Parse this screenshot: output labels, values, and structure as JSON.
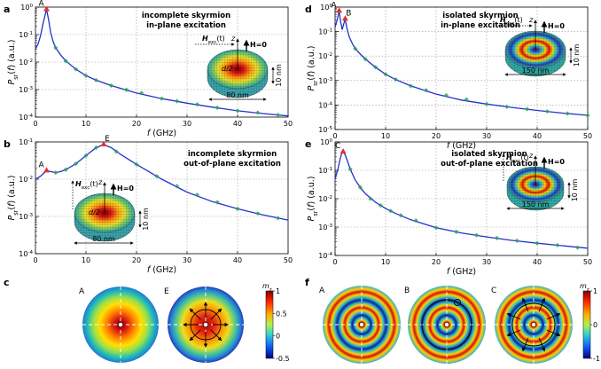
{
  "panel_labels": [
    "a",
    "b",
    "c",
    "d",
    "e",
    "f"
  ],
  "chart_data": [
    {
      "id": "a",
      "type": "line",
      "title_lines": [
        "incomplete skyrmion",
        "in-plane excitation"
      ],
      "xlabel": "f (GHz)",
      "ylabel": "P_sr(f) (a.u.)",
      "xlim": [
        0,
        50
      ],
      "ylim_log10": [
        -4,
        0
      ],
      "xticks": [
        "0",
        "10",
        "20",
        "30",
        "40",
        "50"
      ],
      "yticks": [
        "10^-4",
        "10^-3",
        "10^-2",
        "10^-1",
        "10^0"
      ],
      "grid": true,
      "peaks": [
        {
          "label": "A",
          "x": 2.2,
          "y": 0.82
        }
      ],
      "series": [
        {
          "color": "#2233cc",
          "x": [
            0,
            0.5,
            1,
            1.5,
            2,
            2.2,
            2.6,
            3,
            3.5,
            4,
            5,
            6,
            8,
            10,
            12,
            15,
            20,
            25,
            30,
            35,
            40,
            45,
            50
          ],
          "y": [
            0.03,
            0.045,
            0.09,
            0.25,
            0.6,
            0.82,
            0.35,
            0.12,
            0.055,
            0.033,
            0.018,
            0.011,
            0.0055,
            0.0032,
            0.0022,
            0.0014,
            0.00075,
            0.00047,
            0.00032,
            0.00023,
            0.00017,
            0.000135,
            0.00011
          ]
        }
      ],
      "markers": {
        "color": "#2e9e5b",
        "x": [
          4,
          6,
          8,
          10,
          12,
          15,
          18,
          21,
          25,
          28,
          32,
          36,
          40,
          44,
          48
        ],
        "y": [
          0.033,
          0.011,
          0.0055,
          0.0032,
          0.0022,
          0.0014,
          0.00098,
          0.00075,
          0.00047,
          0.00038,
          0.00029,
          0.00022,
          0.00017,
          0.000145,
          0.00012
        ]
      },
      "inset": {
        "field_label": "H_exc(t)",
        "h_label": "H=0",
        "z_label": "z",
        "d_label": "d/2",
        "dim_w": "80 nm",
        "dim_h": "10 nm"
      }
    },
    {
      "id": "b",
      "type": "line",
      "title_lines": [
        "incomplete skyrmion",
        "out-of-plane excitation"
      ],
      "xlabel": "f (GHz)",
      "ylabel": "P_sr(f) (a.u.)",
      "xlim": [
        0,
        50
      ],
      "ylim_log10": [
        -4,
        -1
      ],
      "xticks": [
        "0",
        "10",
        "20",
        "30",
        "40",
        "50"
      ],
      "yticks": [
        "10^-4",
        "10^-3",
        "10^-2",
        "10^-1"
      ],
      "grid": true,
      "peaks": [
        {
          "label": "A",
          "x": 2.2,
          "y": 0.017
        },
        {
          "label": "E",
          "x": 13.5,
          "y": 0.085
        }
      ],
      "series": [
        {
          "color": "#2233cc",
          "x": [
            0,
            1,
            2,
            2.2,
            3,
            4,
            5,
            6,
            8,
            10,
            12,
            13.5,
            15,
            17,
            20,
            25,
            30,
            35,
            40,
            45,
            50
          ],
          "y": [
            0.01,
            0.012,
            0.016,
            0.017,
            0.016,
            0.015,
            0.016,
            0.018,
            0.026,
            0.043,
            0.07,
            0.085,
            0.07,
            0.045,
            0.025,
            0.01,
            0.0045,
            0.0025,
            0.0016,
            0.0011,
            0.0008
          ]
        }
      ],
      "markers": {
        "color": "#2e9e5b",
        "x": [
          4,
          6,
          8,
          10,
          12,
          16,
          20,
          24,
          28,
          32,
          36,
          40,
          44,
          48
        ],
        "y": [
          0.015,
          0.018,
          0.026,
          0.043,
          0.07,
          0.055,
          0.025,
          0.012,
          0.0065,
          0.0038,
          0.0024,
          0.0016,
          0.0012,
          0.0009
        ]
      },
      "inset": {
        "field_label": "H_exc(t)",
        "h_label": "H=0",
        "z_label": "z",
        "d_label": "d/2",
        "dim_w": "80 nm",
        "dim_h": "10 nm"
      }
    },
    {
      "id": "d",
      "type": "line",
      "title_lines": [
        "isolated skyrmion",
        "in-plane excitation"
      ],
      "xlabel": "f (GHz)",
      "ylabel": "P_sr(f) (a.u.)",
      "xlim": [
        0,
        50
      ],
      "ylim_log10": [
        -5,
        0
      ],
      "xticks": [
        "0",
        "10",
        "20",
        "30",
        "40",
        "50"
      ],
      "yticks": [
        "10^-5",
        "10^-4",
        "10^-3",
        "10^-2",
        "10^-1",
        "10^0"
      ],
      "grid": true,
      "peaks": [
        {
          "label": "A",
          "x": 0.8,
          "y": 0.7
        },
        {
          "label": "B",
          "x": 2.0,
          "y": 0.33
        }
      ],
      "series": [
        {
          "color": "#2233cc",
          "x": [
            0,
            0.5,
            0.8,
            1.1,
            1.4,
            1.7,
            2.0,
            2.3,
            2.8,
            3.5,
            4,
            5,
            6,
            8,
            10,
            12,
            15,
            20,
            25,
            30,
            35,
            40,
            45,
            50
          ],
          "y": [
            0.15,
            0.35,
            0.7,
            0.25,
            0.12,
            0.2,
            0.33,
            0.15,
            0.06,
            0.03,
            0.02,
            0.012,
            0.0075,
            0.0035,
            0.0018,
            0.0011,
            0.0006,
            0.00028,
            0.00016,
            0.00011,
            8e-05,
            6e-05,
            4.7e-05,
            3.8e-05
          ]
        }
      ],
      "markers": {
        "color": "#2e9e5b",
        "x": [
          4,
          6,
          8,
          10,
          12,
          15,
          18,
          22,
          26,
          30,
          34,
          38,
          42,
          46,
          50
        ],
        "y": [
          0.02,
          0.0075,
          0.0035,
          0.0018,
          0.0011,
          0.0006,
          0.0004,
          0.00025,
          0.00017,
          0.00011,
          8.5e-05,
          6.8e-05,
          5.5e-05,
          4.5e-05,
          3.8e-05
        ]
      },
      "inset": {
        "field_label": "H_exc(t)",
        "h_label": "H=0",
        "z_label": "z",
        "dim_w": "150 nm",
        "dim_h": "10 nm"
      }
    },
    {
      "id": "e",
      "type": "line",
      "title_lines": [
        "isolated skyrmion",
        "out-of-plane excitation"
      ],
      "xlabel": "f (GHz)",
      "ylabel": "P_sr(f) (a.u.)",
      "xlim": [
        0,
        50
      ],
      "ylim_log10": [
        -4,
        0
      ],
      "xticks": [
        "0",
        "10",
        "20",
        "30",
        "40",
        "50"
      ],
      "yticks": [
        "10^-4",
        "10^-3",
        "10^-2",
        "10^-1",
        "10^0"
      ],
      "grid": true,
      "peaks": [
        {
          "label": "C",
          "x": 1.6,
          "y": 0.45
        }
      ],
      "series": [
        {
          "color": "#2233cc",
          "x": [
            0,
            0.5,
            1,
            1.3,
            1.6,
            2.0,
            2.5,
            3,
            4,
            5,
            6,
            8,
            10,
            12,
            15,
            20,
            25,
            30,
            35,
            40,
            45,
            50
          ],
          "y": [
            0.05,
            0.1,
            0.25,
            0.38,
            0.45,
            0.35,
            0.2,
            0.11,
            0.045,
            0.025,
            0.015,
            0.0075,
            0.0045,
            0.003,
            0.0018,
            0.00095,
            0.00062,
            0.00045,
            0.00034,
            0.00027,
            0.00022,
            0.00018
          ]
        }
      ],
      "markers": {
        "color": "#2e9e5b",
        "x": [
          3,
          5,
          7,
          9,
          11,
          13,
          16,
          20,
          24,
          28,
          32,
          36,
          40,
          44,
          48
        ],
        "y": [
          0.11,
          0.025,
          0.01,
          0.0058,
          0.0037,
          0.0026,
          0.0017,
          0.00095,
          0.00068,
          0.00052,
          0.00041,
          0.00033,
          0.00027,
          0.00023,
          0.00019
        ]
      },
      "inset": {
        "field_label": "H_exc(t)",
        "h_label": "H=0",
        "z_label": "z",
        "dim_w": "150 nm",
        "dim_h": "10 nm"
      }
    },
    {
      "id": "c",
      "type": "heatmap",
      "maps": [
        {
          "label": "A",
          "profile": "incomplete"
        },
        {
          "label": "E",
          "profile": "incomplete-arrows"
        }
      ],
      "colorbar": {
        "title": "m_z",
        "ticks": [
          "1",
          "0.5",
          "0",
          "-0.5"
        ],
        "range": [
          -0.5,
          1
        ]
      }
    },
    {
      "id": "f",
      "type": "heatmap",
      "maps": [
        {
          "label": "A",
          "profile": "rings"
        },
        {
          "label": "B",
          "profile": "rings-circle"
        },
        {
          "label": "C",
          "profile": "rings-arrows"
        }
      ],
      "colorbar": {
        "title": "m_z",
        "ticks": [
          "1",
          "0",
          "-1"
        ],
        "range": [
          -1,
          1
        ]
      }
    }
  ]
}
